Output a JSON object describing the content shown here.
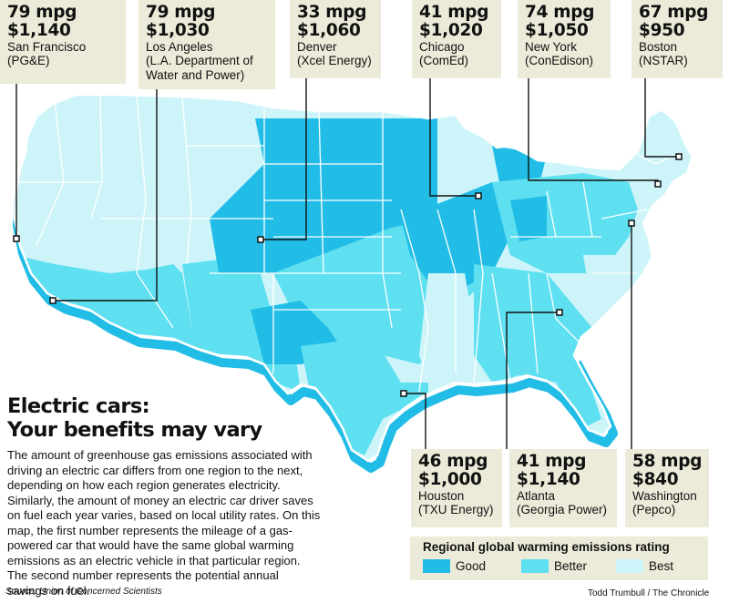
{
  "headline": {
    "line1": "Electric cars:",
    "line2": "Your benefits may vary"
  },
  "body_text": "The amount of greenhouse gas emissions associated with driving an electric car differs from one region to the next, depending on how each region generates electricity. Similarly, the amount of money an electric car driver saves on fuel each year varies, based on local utility rates. On this map, the first number represents the mileage of a gas-powered car that would have the same global warming emissions as an electric vehicle in that particular region. The second number represents the potential annual savings on fuel.",
  "cities": [
    {
      "id": "san-francisco",
      "mpg": "79 mpg",
      "savings": "$1,140",
      "city": "San Francisco",
      "utility": "(PG&E)"
    },
    {
      "id": "los-angeles",
      "mpg": "79 mpg",
      "savings": "$1,030",
      "city": "Los Angeles",
      "utility": "(L.A. Department of Water and Power)"
    },
    {
      "id": "denver",
      "mpg": "33 mpg",
      "savings": "$1,060",
      "city": "Denver",
      "utility": "(Xcel Energy)"
    },
    {
      "id": "chicago",
      "mpg": "41 mpg",
      "savings": "$1,020",
      "city": "Chicago",
      "utility": "(ComEd)"
    },
    {
      "id": "new-york",
      "mpg": "74 mpg",
      "savings": "$1,050",
      "city": "New York",
      "utility": "(ConEdison)"
    },
    {
      "id": "boston",
      "mpg": "67 mpg",
      "savings": "$950",
      "city": "Boston",
      "utility": "(NSTAR)"
    },
    {
      "id": "houston",
      "mpg": "46 mpg",
      "savings": "$1,000",
      "city": "Houston",
      "utility": "(TXU Energy)"
    },
    {
      "id": "atlanta",
      "mpg": "41 mpg",
      "savings": "$1,140",
      "city": "Atlanta",
      "utility": "(Georgia Power)"
    },
    {
      "id": "washington",
      "mpg": "58 mpg",
      "savings": "$840",
      "city": "Washington",
      "utility": "(Pepco)"
    }
  ],
  "legend": {
    "title": "Regional global warming emissions rating",
    "items": [
      {
        "label": "Good",
        "color": "#22bde6"
      },
      {
        "label": "Better",
        "color": "#5ee0f0"
      },
      {
        "label": "Best",
        "color": "#cdf5f9"
      }
    ]
  },
  "source": "Source: Union of Concerned Scientists",
  "credit": "Todd Trumbull / The Chronicle"
}
